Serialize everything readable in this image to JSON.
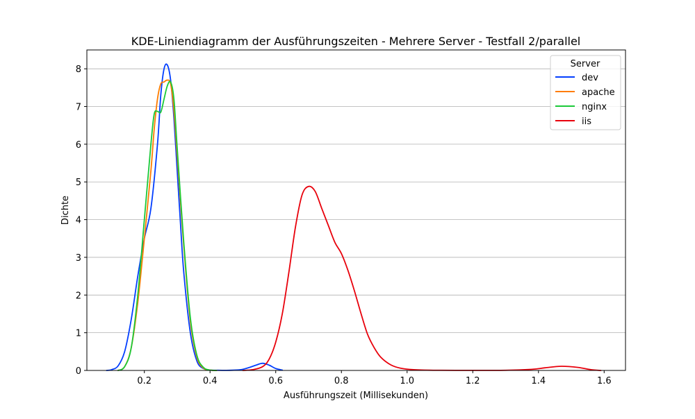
{
  "chart_data": {
    "type": "line",
    "title": "KDE-Liniendiagramm der Ausführungszeiten - Mehrere Server - Testfall 2/parallel",
    "xlabel": "Ausführungszeit (Millisekunden)",
    "ylabel": "Dichte",
    "xlim": [
      0.025,
      1.665
    ],
    "ylim": [
      0,
      8.5
    ],
    "xticks": [
      0.2,
      0.4,
      0.6,
      0.8,
      1.0,
      1.2,
      1.4,
      1.6
    ],
    "xtick_labels": [
      "0.2",
      "0.4",
      "0.6",
      "0.8",
      "1.0",
      "1.2",
      "1.4",
      "1.6"
    ],
    "yticks": [
      0,
      1,
      2,
      3,
      4,
      5,
      6,
      7,
      8
    ],
    "ytick_labels": [
      "0",
      "1",
      "2",
      "3",
      "4",
      "5",
      "6",
      "7",
      "8"
    ],
    "grid": "horizontal",
    "legend": {
      "title": "Server",
      "position": "upper right"
    },
    "series": [
      {
        "name": "dev",
        "color": "#023eff",
        "x": [
          0.085,
          0.1,
          0.12,
          0.14,
          0.16,
          0.18,
          0.2,
          0.22,
          0.24,
          0.25,
          0.26,
          0.27,
          0.28,
          0.29,
          0.3,
          0.31,
          0.32,
          0.34,
          0.36,
          0.38,
          0.4,
          0.42,
          0.45,
          0.48,
          0.5,
          0.52,
          0.54,
          0.56,
          0.58,
          0.6,
          0.62
        ],
        "y": [
          0.0,
          0.02,
          0.12,
          0.5,
          1.35,
          2.5,
          3.5,
          4.3,
          6.0,
          7.3,
          8.0,
          8.1,
          7.7,
          6.7,
          5.3,
          3.9,
          2.6,
          1.0,
          0.25,
          0.05,
          0.01,
          0.005,
          0.002,
          0.01,
          0.03,
          0.08,
          0.14,
          0.19,
          0.14,
          0.05,
          0.01
        ]
      },
      {
        "name": "apache",
        "color": "#ff7c00",
        "x": [
          0.12,
          0.14,
          0.16,
          0.18,
          0.2,
          0.22,
          0.23,
          0.24,
          0.25,
          0.26,
          0.27,
          0.28,
          0.29,
          0.3,
          0.32,
          0.34,
          0.36,
          0.38,
          0.4,
          0.42
        ],
        "y": [
          0.0,
          0.1,
          0.6,
          1.8,
          3.5,
          5.3,
          6.4,
          7.2,
          7.6,
          7.65,
          7.7,
          7.6,
          6.9,
          5.7,
          3.3,
          1.3,
          0.35,
          0.06,
          0.01,
          0.0
        ]
      },
      {
        "name": "nginx",
        "color": "#1ac938",
        "x": [
          0.12,
          0.14,
          0.16,
          0.18,
          0.2,
          0.22,
          0.23,
          0.24,
          0.25,
          0.26,
          0.27,
          0.28,
          0.29,
          0.3,
          0.32,
          0.34,
          0.36,
          0.38,
          0.4,
          0.42
        ],
        "y": [
          0.0,
          0.1,
          0.6,
          2.0,
          4.0,
          6.0,
          6.8,
          6.87,
          6.85,
          7.2,
          7.55,
          7.65,
          7.2,
          5.9,
          3.4,
          1.4,
          0.4,
          0.08,
          0.01,
          0.0
        ]
      },
      {
        "name": "iis",
        "color": "#e8000b",
        "x": [
          0.5,
          0.53,
          0.56,
          0.58,
          0.6,
          0.62,
          0.64,
          0.66,
          0.68,
          0.7,
          0.72,
          0.74,
          0.76,
          0.78,
          0.8,
          0.82,
          0.84,
          0.86,
          0.88,
          0.9,
          0.92,
          0.95,
          0.98,
          1.02,
          1.08,
          1.2,
          1.3,
          1.38,
          1.42,
          1.47,
          1.52,
          1.56,
          1.59
        ],
        "y": [
          0.0,
          0.02,
          0.1,
          0.3,
          0.75,
          1.5,
          2.6,
          3.8,
          4.65,
          4.88,
          4.75,
          4.3,
          3.85,
          3.4,
          3.1,
          2.65,
          2.1,
          1.5,
          0.95,
          0.6,
          0.35,
          0.15,
          0.06,
          0.02,
          0.005,
          0.003,
          0.005,
          0.03,
          0.07,
          0.11,
          0.08,
          0.02,
          0.0
        ]
      }
    ]
  }
}
